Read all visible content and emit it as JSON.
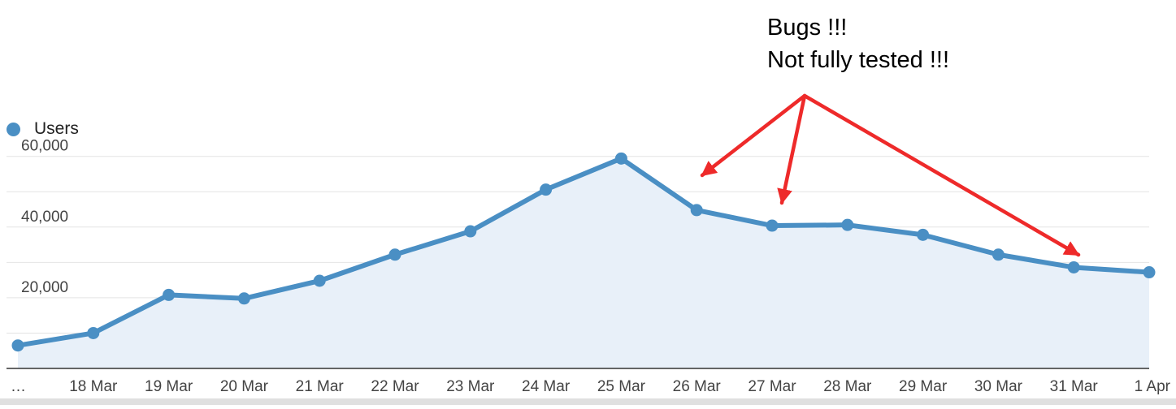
{
  "legend": {
    "label": "Users"
  },
  "annotation": {
    "line1": "Bugs !!!",
    "line2": "Not fully tested !!!"
  },
  "colors": {
    "series": "#4a8fc4",
    "area": "#e8f0f9",
    "grid": "#e4e4e4",
    "axis": "#333333",
    "arrow": "#ee2a2a"
  },
  "chart_data": {
    "type": "area",
    "x": [
      "…",
      "18 Mar",
      "19 Mar",
      "20 Mar",
      "21 Mar",
      "22 Mar",
      "23 Mar",
      "24 Mar",
      "25 Mar",
      "26 Mar",
      "27 Mar",
      "28 Mar",
      "29 Mar",
      "30 Mar",
      "31 Mar",
      "1 Apr"
    ],
    "series": [
      {
        "name": "Users",
        "values": [
          6500,
          10000,
          20800,
          19800,
          24800,
          32200,
          38800,
          50600,
          59400,
          44800,
          40400,
          40600,
          37800,
          32200,
          28600,
          27200
        ]
      }
    ],
    "yticks": [
      "20,000",
      "40,000",
      "60,000"
    ],
    "ytick_values": [
      20000,
      40000,
      60000
    ],
    "ylim": [
      0,
      60000
    ],
    "grid": true,
    "legend_position": "top-left",
    "annotated_points": [
      "26 Mar",
      "27 Mar",
      "31 Mar"
    ]
  }
}
